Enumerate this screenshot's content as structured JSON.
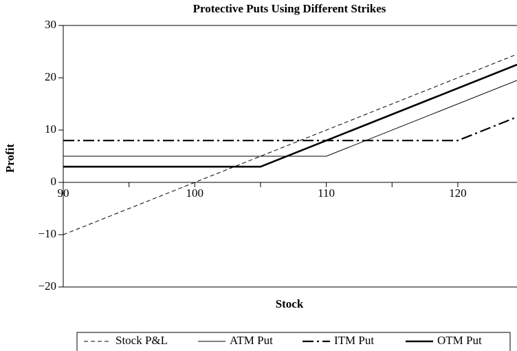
{
  "chart_data": {
    "type": "line",
    "title": "Protective Puts Using Different Strikes",
    "xlabel": "Stock",
    "ylabel": "Profit",
    "xlim": [
      90,
      124.5
    ],
    "ylim": [
      -20,
      30
    ],
    "xticks": [
      90,
      100,
      110,
      120
    ],
    "xminorticks": [
      95,
      105,
      115
    ],
    "yticks": [
      {
        "value": -20,
        "label": "−20"
      },
      {
        "value": -10,
        "label": "−10"
      },
      0,
      10,
      20,
      30
    ],
    "series": [
      {
        "name": "Stock P&L",
        "color": "#000000",
        "width": 1,
        "dash": "6,4",
        "x": [
          90,
          124.5
        ],
        "values": [
          -10,
          24.5
        ]
      },
      {
        "name": "ATM Put",
        "color": "#000000",
        "width": 1,
        "dash": "none",
        "x": [
          90,
          110,
          124.5
        ],
        "values": [
          5,
          5,
          19.5
        ]
      },
      {
        "name": "ITM Put",
        "color": "#000000",
        "width": 2.2,
        "dash": "16,5,3,5",
        "x": [
          90,
          120,
          124.5
        ],
        "values": [
          8,
          8,
          12.5
        ]
      },
      {
        "name": "OTM Put",
        "color": "#000000",
        "width": 2.6,
        "dash": "none",
        "x": [
          90,
          105,
          124.5
        ],
        "values": [
          3,
          3,
          22.5
        ]
      }
    ]
  }
}
